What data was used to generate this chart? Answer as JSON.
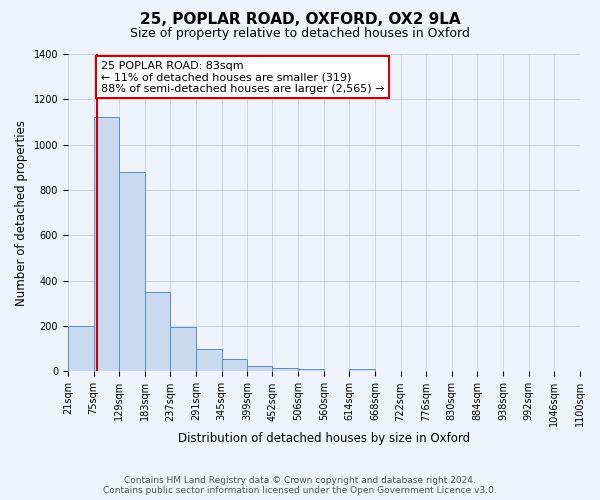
{
  "title": "25, POPLAR ROAD, OXFORD, OX2 9LA",
  "subtitle": "Size of property relative to detached houses in Oxford",
  "xlabel": "Distribution of detached houses by size in Oxford",
  "ylabel": "Number of detached properties",
  "bin_edges": [
    21,
    75,
    129,
    183,
    237,
    291,
    345,
    399,
    452,
    506,
    560,
    614,
    668,
    722,
    776,
    830,
    884,
    938,
    992,
    1046,
    1100
  ],
  "bar_heights": [
    200,
    1120,
    880,
    350,
    195,
    100,
    55,
    25,
    15,
    12,
    0,
    10,
    0,
    0,
    0,
    0,
    0,
    0,
    0,
    0
  ],
  "bar_color": "#c9d9f0",
  "bar_edge_color": "#5b8ec4",
  "vline_x": 83,
  "vline_color": "#cc0000",
  "annotation_line1": "25 POPLAR ROAD: 83sqm",
  "annotation_line2": "← 11% of detached houses are smaller (319)",
  "annotation_line3": "88% of semi-detached houses are larger (2,565) →",
  "annotation_box_edge_color": "#cc0000",
  "annotation_box_face_color": "#ffffff",
  "ylim": [
    0,
    1400
  ],
  "yticks": [
    0,
    200,
    400,
    600,
    800,
    1000,
    1200,
    1400
  ],
  "tick_labels": [
    "21sqm",
    "75sqm",
    "129sqm",
    "183sqm",
    "237sqm",
    "291sqm",
    "345sqm",
    "399sqm",
    "452sqm",
    "506sqm",
    "560sqm",
    "614sqm",
    "668sqm",
    "722sqm",
    "776sqm",
    "830sqm",
    "884sqm",
    "938sqm",
    "992sqm",
    "1046sqm",
    "1100sqm"
  ],
  "footer_line1": "Contains HM Land Registry data © Crown copyright and database right 2024.",
  "footer_line2": "Contains public sector information licensed under the Open Government Licence v3.0.",
  "background_color": "#eef2fb",
  "grid_color": "#c8d0e0",
  "title_fontsize": 11,
  "subtitle_fontsize": 9,
  "axis_label_fontsize": 8.5,
  "tick_fontsize": 7,
  "annotation_fontsize": 8,
  "footer_fontsize": 6.5
}
